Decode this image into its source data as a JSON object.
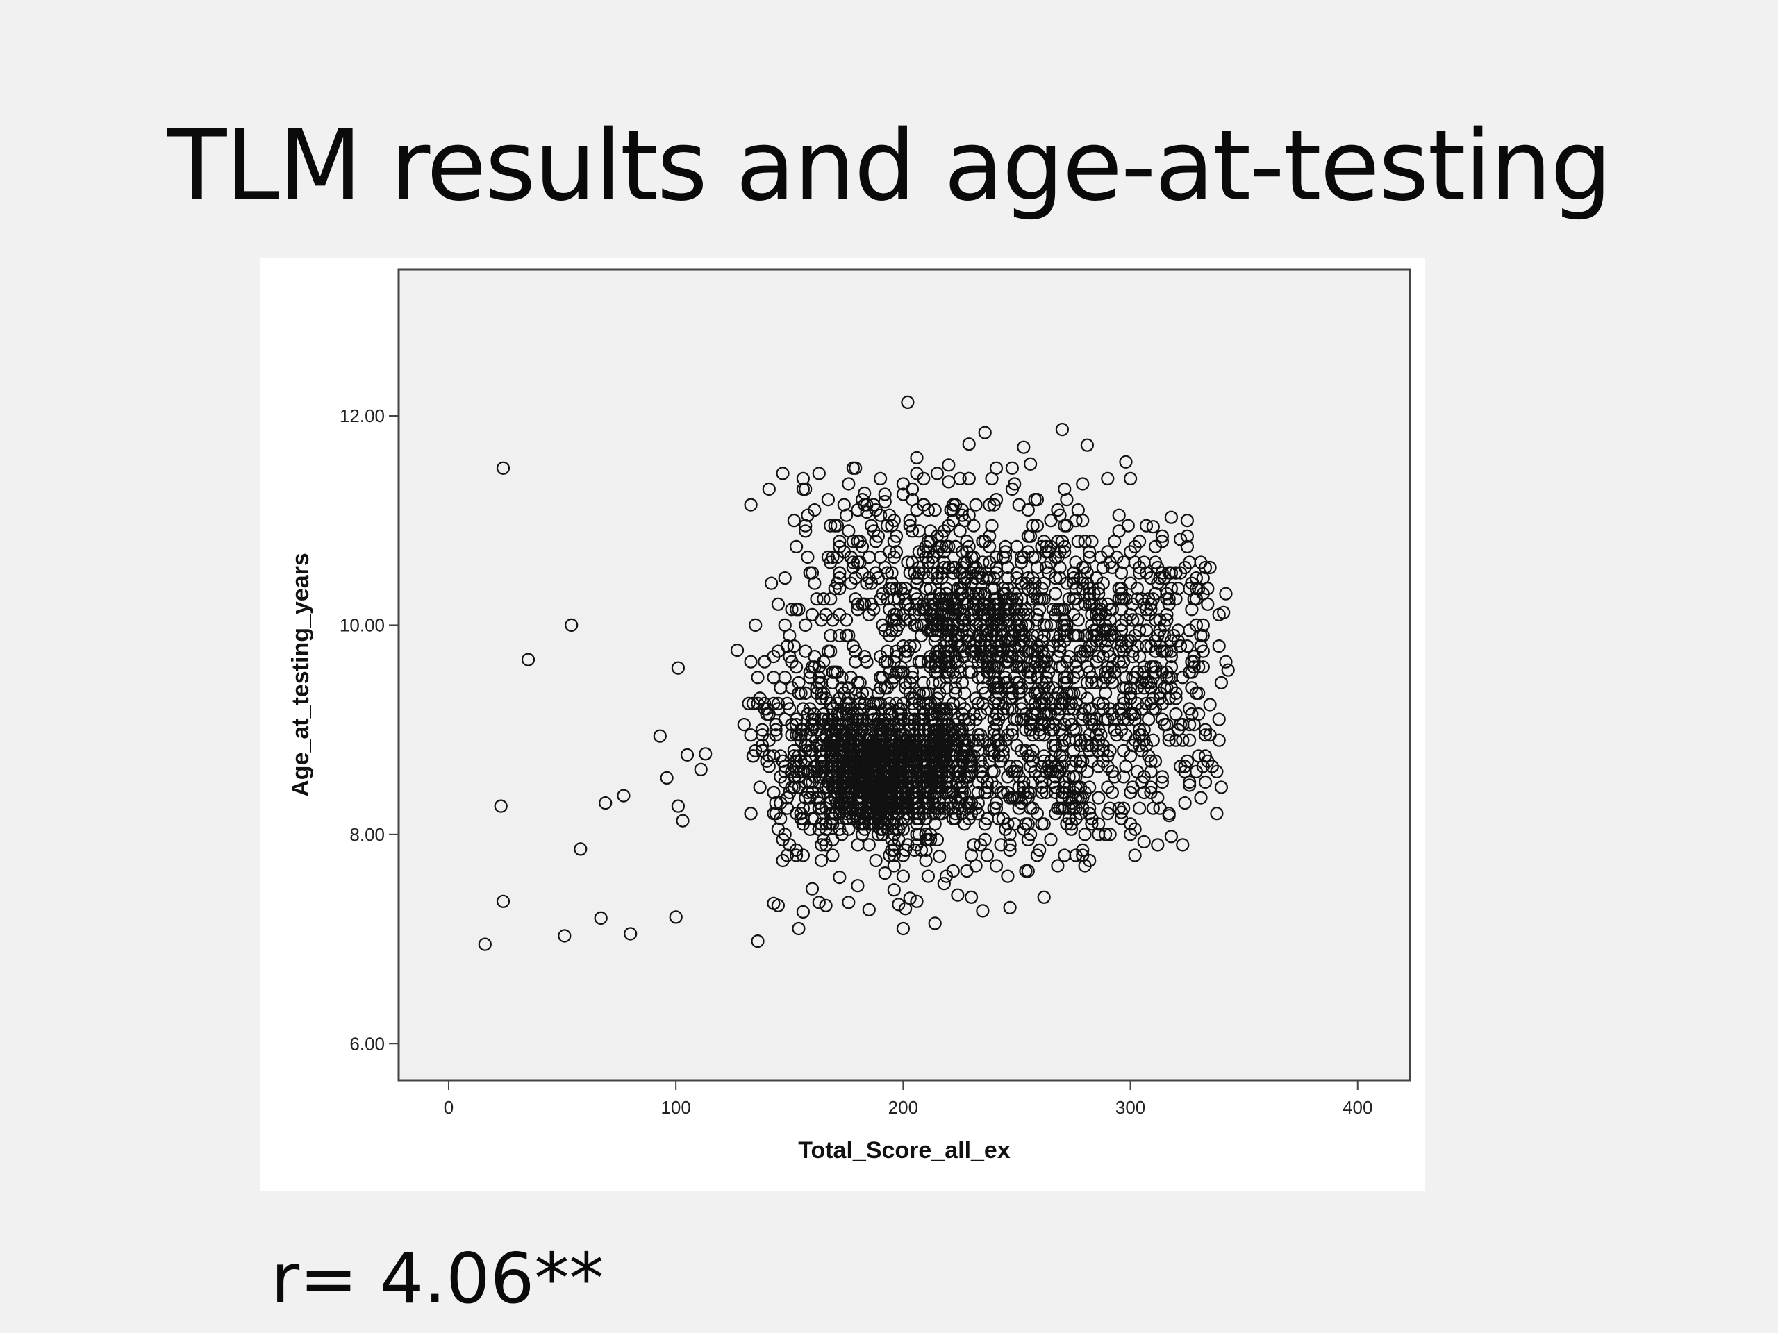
{
  "slide": {
    "title": "TLM results and age-at-testing",
    "footer": "r= 4.06**"
  },
  "chart_data": {
    "type": "scatter",
    "xlabel": "Total_Score_all_ex",
    "ylabel": "Age_at_testing_years",
    "xlim": [
      -22,
      423
    ],
    "ylim": [
      5.65,
      13.4
    ],
    "xticks": [
      0,
      100,
      200,
      300,
      400
    ],
    "yticks": [
      6.0,
      8.0,
      10.0,
      12.0
    ],
    "xtick_labels": [
      "0",
      "100",
      "200",
      "300",
      "400"
    ],
    "ytick_labels": [
      "6.00",
      "8.00",
      "10.00",
      "12.00"
    ],
    "grid": false,
    "marker": "hollow-circle",
    "colors": {
      "plot_background": "#f0f0f0",
      "marker": "#111111",
      "frame": "#444444"
    },
    "points_explicit": [
      [
        24,
        11.5
      ],
      [
        16,
        6.95
      ],
      [
        23,
        8.27
      ],
      [
        24,
        7.36
      ],
      [
        35,
        9.67
      ],
      [
        51,
        7.03
      ],
      [
        54,
        10.0
      ],
      [
        58,
        7.86
      ],
      [
        67,
        7.2
      ],
      [
        69,
        8.3
      ],
      [
        77,
        8.37
      ],
      [
        80,
        7.05
      ],
      [
        93,
        8.94
      ],
      [
        96,
        8.54
      ],
      [
        100,
        7.21
      ],
      [
        101,
        9.59
      ],
      [
        101,
        8.27
      ],
      [
        103,
        8.13
      ],
      [
        105,
        8.76
      ],
      [
        111,
        8.62
      ],
      [
        113,
        8.77
      ],
      [
        127,
        9.76
      ],
      [
        136,
        6.98
      ],
      [
        143,
        7.34
      ],
      [
        145,
        7.32
      ],
      [
        147,
        7.75
      ],
      [
        154,
        7.1
      ],
      [
        156,
        7.26
      ],
      [
        160,
        7.48
      ],
      [
        163,
        7.35
      ],
      [
        166,
        7.32
      ],
      [
        172,
        7.59
      ],
      [
        176,
        7.35
      ],
      [
        180,
        7.51
      ],
      [
        185,
        7.28
      ],
      [
        192,
        7.63
      ],
      [
        196,
        7.47
      ],
      [
        198,
        7.33
      ],
      [
        201,
        7.29
      ],
      [
        203,
        7.39
      ],
      [
        206,
        7.36
      ],
      [
        211,
        7.6
      ],
      [
        216,
        7.79
      ],
      [
        218,
        7.53
      ],
      [
        224,
        7.42
      ],
      [
        235,
        7.27
      ],
      [
        246,
        7.6
      ],
      [
        202,
        12.13
      ],
      [
        206,
        11.6
      ],
      [
        206,
        11.45
      ],
      [
        220,
        11.53
      ],
      [
        220,
        11.37
      ],
      [
        229,
        11.73
      ],
      [
        236,
        11.84
      ],
      [
        253,
        11.7
      ],
      [
        256,
        11.54
      ],
      [
        270,
        11.87
      ],
      [
        281,
        11.72
      ],
      [
        298,
        11.56
      ],
      [
        300,
        11.4
      ],
      [
        183,
        11.26
      ],
      [
        184,
        11.08
      ],
      [
        192,
        11.18
      ],
      [
        204,
        11.2
      ],
      [
        259,
        11.2
      ],
      [
        268,
        11.1
      ],
      [
        318,
        11.03
      ],
      [
        322,
        10.82
      ],
      [
        310,
        10.94
      ],
      [
        341,
        10.12
      ],
      [
        343,
        9.57
      ],
      [
        335,
        9.24
      ],
      [
        330,
        9.6
      ],
      [
        326,
        8.47
      ],
      [
        317,
        8.18
      ],
      [
        318,
        7.98
      ],
      [
        306,
        7.93
      ],
      [
        296,
        8.21
      ]
    ],
    "dense_clusters": [
      {
        "center": [
          188,
          8.6
        ],
        "spread": [
          18,
          0.34
        ],
        "count": 1100
      },
      {
        "center": [
          212,
          8.72
        ],
        "spread": [
          14,
          0.3
        ],
        "count": 240
      },
      {
        "center": [
          230,
          10.05
        ],
        "spread": [
          17,
          0.28
        ],
        "count": 240
      },
      {
        "center": [
          255,
          9.5
        ],
        "spread": [
          32,
          0.65
        ],
        "count": 460
      },
      {
        "center": [
          210,
          9.75
        ],
        "spread": [
          33,
          0.85
        ],
        "count": 300
      },
      {
        "center": [
          288,
          9.55
        ],
        "spread": [
          24,
          0.55
        ],
        "count": 220
      },
      {
        "center": [
          263,
          8.45
        ],
        "spread": [
          26,
          0.38
        ],
        "count": 200
      },
      {
        "center": [
          160,
          8.95
        ],
        "spread": [
          18,
          0.4
        ],
        "count": 160
      },
      {
        "center": [
          305,
          10.15
        ],
        "spread": [
          22,
          0.35
        ],
        "count": 120
      },
      {
        "center": [
          240,
          10.8
        ],
        "spread": [
          30,
          0.4
        ],
        "count": 100
      },
      {
        "center": [
          190,
          10.6
        ],
        "spread": [
          22,
          0.45
        ],
        "count": 90
      },
      {
        "center": [
          320,
          9.0
        ],
        "spread": [
          12,
          0.55
        ],
        "count": 60
      }
    ]
  }
}
